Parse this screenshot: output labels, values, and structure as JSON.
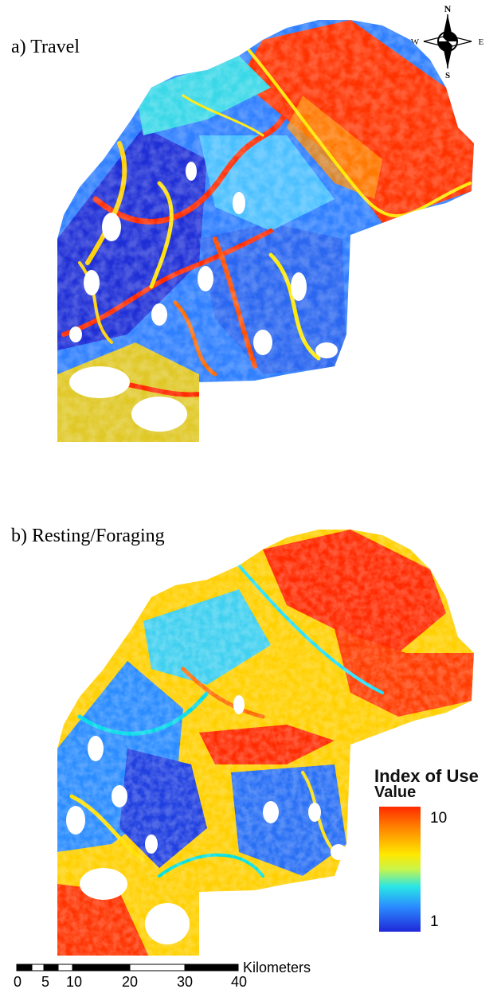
{
  "panels": [
    {
      "label": "a) Travel"
    },
    {
      "label": "b) Resting/Foraging"
    }
  ],
  "compass": {
    "north": "N",
    "south": "S",
    "east": "E",
    "west": "W"
  },
  "legend": {
    "title": "Index of Use",
    "subtitle": "Value",
    "max_label": "10",
    "min_label": "1",
    "ramp_colors": [
      "#ff2a00",
      "#ff7a00",
      "#ffe800",
      "#c8f54a",
      "#29e6e6",
      "#2a8cff",
      "#1f28d8"
    ]
  },
  "scale": {
    "unit": "Kilometers",
    "ticks": [
      "0",
      "5",
      "10",
      "20",
      "30",
      "40"
    ]
  }
}
